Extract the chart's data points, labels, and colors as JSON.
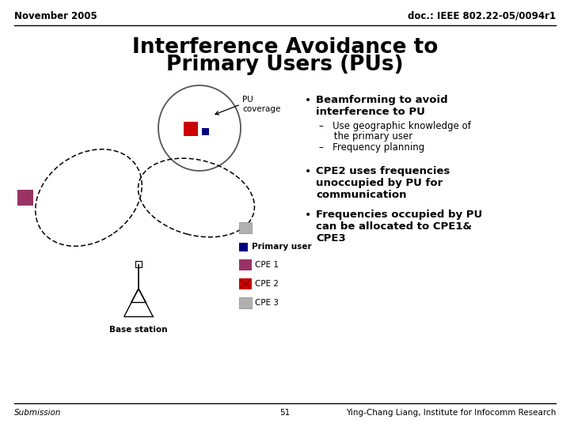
{
  "title_line1": "Interference Avoidance to",
  "title_line2": "Primary Users (PUs)",
  "header_left": "November 2005",
  "header_right": "doc.: IEEE 802.22-05/0094r1",
  "footer_left": "Submission",
  "footer_center": "51",
  "footer_right": "Ying-Chang Liang, Institute for Infocomm Research",
  "pu_label": "PU\ncoverage",
  "base_station_label": "Base station",
  "bg_color": "#ffffff",
  "title_color": "#000000",
  "text_color": "#000000",
  "color_pu_red": "#cc0000",
  "color_primary_user": "#000080",
  "color_cpe1": "#993366",
  "color_cpe2": "#cc0000",
  "color_cpe3": "#aaaaaa",
  "bullet1_line1": "Beamforming to avoid",
  "bullet1_line2": "interference to PU",
  "sub1a_line1": "–   Use geographic knowledge of",
  "sub1a_line2": "     the primary user",
  "sub1b": "–   Frequency planning",
  "bullet2_line1": "CPE2 uses frequencies",
  "bullet2_line2": "unoccupied by PU for",
  "bullet2_line3": "communication",
  "bullet3_line1": "Frequencies occupied by PU",
  "bullet3_line2": "can be allocated to CPE1&",
  "bullet3_line3": "CPE3"
}
